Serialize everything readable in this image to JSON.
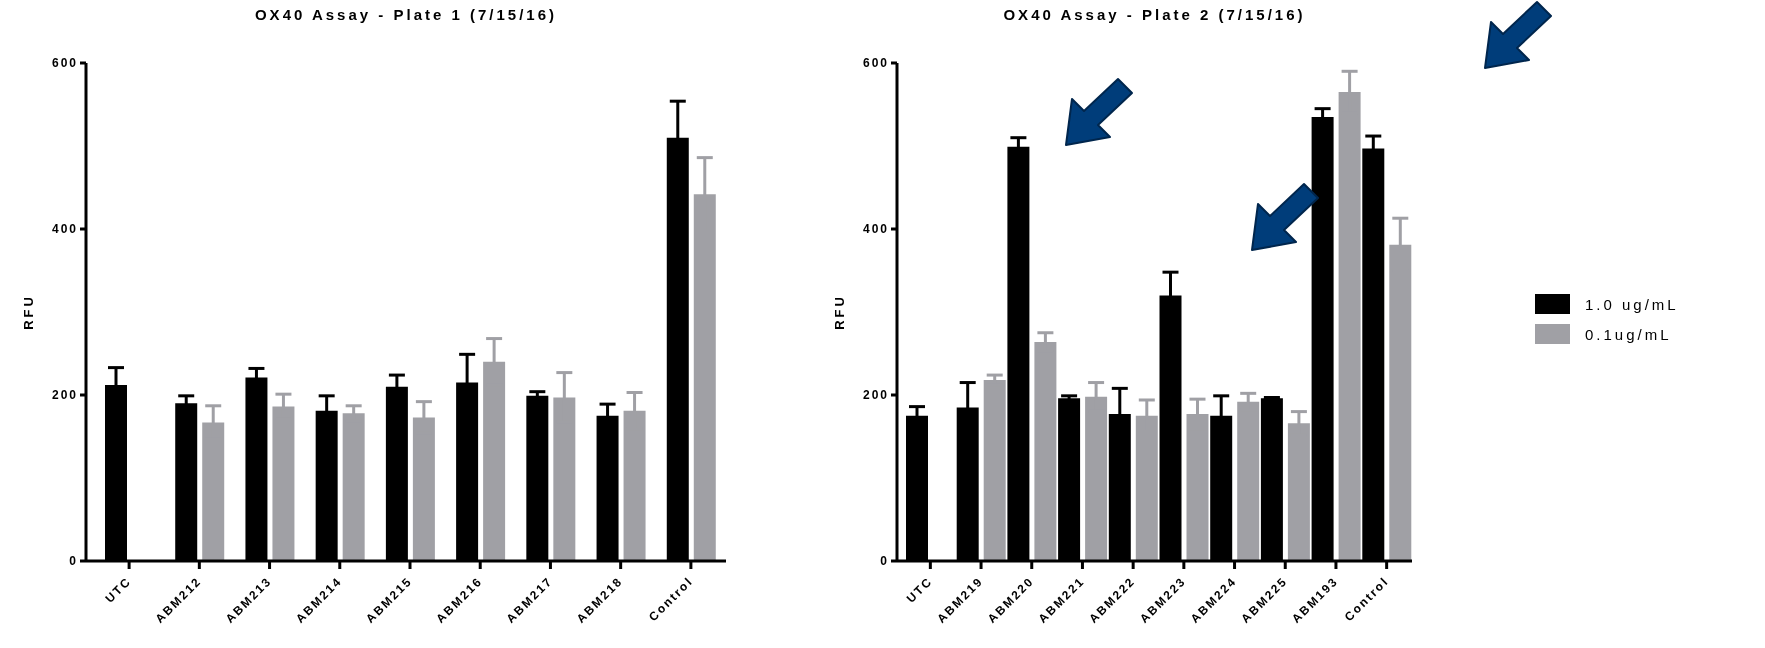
{
  "chart_data": [
    {
      "type": "bar",
      "title": "OX40 Assay - Plate 1 (7/15/16)",
      "ylabel": "RFU",
      "categories": [
        "UTC",
        "ABM212",
        "ABM213",
        "ABM214",
        "ABM215",
        "ABM216",
        "ABM217",
        "ABM218",
        "Control"
      ],
      "ylim": [
        0,
        600
      ],
      "yticks": [
        0,
        200,
        400,
        600
      ],
      "series": [
        {
          "color": "#000000",
          "values": [
            212,
            190,
            221,
            181,
            210,
            215,
            199,
            175,
            510
          ],
          "errors": [
            21,
            9,
            11,
            18,
            14,
            34,
            5,
            14,
            44
          ]
        },
        {
          "color": "#a0a0a5",
          "values": [
            null,
            167,
            186,
            178,
            173,
            240,
            197,
            181,
            442
          ],
          "errors": [
            null,
            20,
            15,
            9,
            19,
            28,
            30,
            22,
            44
          ]
        }
      ]
    },
    {
      "type": "bar",
      "title": "OX40 Assay - Plate 2 (7/15/16)",
      "ylabel": "RFU",
      "categories": [
        "UTC",
        "ABM219",
        "ABM220",
        "ABM221",
        "ABM222",
        "ABM223",
        "ABM224",
        "ABM225",
        "ABM193",
        "Control"
      ],
      "ylim": [
        0,
        600
      ],
      "yticks": [
        0,
        200,
        400,
        600
      ],
      "legend": "right",
      "series": [
        {
          "name": "1.0 ug/mL",
          "color": "#000000",
          "values": [
            175,
            185,
            499,
            196,
            177,
            320,
            175,
            196,
            535,
            497
          ],
          "errors": [
            11,
            30,
            11,
            3,
            31,
            28,
            24,
            1,
            10,
            15
          ]
        },
        {
          "name": "0.1ug/mL",
          "color": "#a0a0a5",
          "values": [
            null,
            218,
            264,
            198,
            175,
            177,
            192,
            166,
            565,
            381
          ],
          "errors": [
            null,
            6,
            11,
            17,
            19,
            18,
            10,
            14,
            25,
            32
          ]
        }
      ]
    }
  ]
}
